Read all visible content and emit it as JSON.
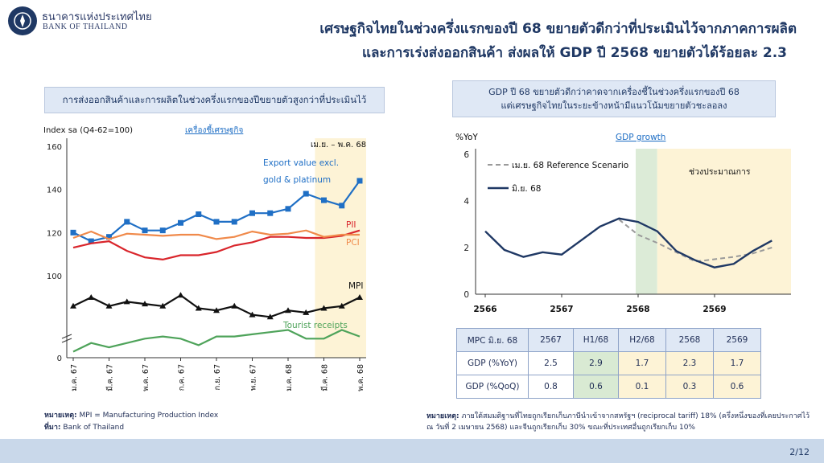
{
  "header": {
    "bank_name_th": "ธนาคารแห่งประเทศไทย",
    "bank_name_en": "BANK OF THAILAND",
    "title_line1": "เศรษฐกิจไทยในช่วงครึ่งแรกของปี 68 ขยายตัวดีกว่าที่ประเมินไว้จากภาคการผลิต",
    "title_line2": "และการเร่งส่งออกสินค้า ส่งผลให้ GDP ปี 2568 ขยายตัวได้ร้อยละ 2.3"
  },
  "left_panel": {
    "box_title": "การส่งออกสินค้าและการผลิตในช่วงครึ่งแรกของปีขยายตัวสูงกว่าที่ประเมินไว้",
    "note_label": "หมายเหตุ:",
    "note_text": "MPI = Manufacturing Production Index",
    "source_label": "ที่มา:",
    "source_text": "Bank of Thailand"
  },
  "right_panel": {
    "box_line1": "GDP ปี 68 ขยายตัวดีกว่าคาดจากเครื่องชี้ในช่วงครึ่งแรกของปี 68",
    "box_line2": "แต่เศรษฐกิจไทยในระยะข้างหน้ามีแนวโน้มขยายตัวชะลอลง",
    "note_label": "หมายเหตุ:",
    "note_line1": "ภายใต้สมมติฐานที่ไทยถูกเรียกเก็บภาษีนำเข้าจากสหรัฐฯ (reciprocal tariff) 18% (ครึ่งหนึ่งของที่เคยประกาศไว้",
    "note_line2": "ณ วันที่ 2 เมษายน 2568) และจีนถูกเรียกเก็บ 30% ขณะที่ประเทศอื่นถูกเรียกเก็บ 10%",
    "table": {
      "header": [
        "MPC มิ.ย. 68",
        "2567",
        "H1/68",
        "H2/68",
        "2568",
        "2569"
      ],
      "rows": [
        [
          "GDP (%YoY)",
          "2.5",
          "2.9",
          "1.7",
          "2.3",
          "1.7"
        ],
        [
          "GDP (%QoQ)",
          "0.8",
          "0.6",
          "0.1",
          "0.3",
          "0.6"
        ]
      ]
    }
  },
  "page_number": "2/12",
  "chart_data": [
    {
      "type": "line",
      "ylabel": "Index sa (Q4-62=100)",
      "link_label": "เครื่องชี้เศรษฐกิจ",
      "period_label": "เม.ย. – พ.ค. 68",
      "ylim": [
        0,
        160
      ],
      "y_ticks": [
        0,
        100,
        120,
        140,
        160
      ],
      "axis_break": true,
      "x_tick_labels": [
        "ม.ค. 67",
        "มี.ค. 67",
        "พ.ค. 67",
        "ก.ค. 67",
        "ก.ย. 67",
        "พ.ย. 67",
        "ม.ค. 68",
        "มี.ค. 68",
        "พ.ค. 68"
      ],
      "x_count": 17,
      "highlight_from_index": 14,
      "series": [
        {
          "name": "Export value excl. gold & platinum",
          "label_lines": [
            "Export value excl.",
            "gold & platinum"
          ],
          "color": "#1f6fc5",
          "marker": "square",
          "values": [
            120,
            116,
            118,
            125,
            121,
            121,
            124.5,
            128.5,
            125,
            125,
            129,
            129,
            131,
            138,
            135,
            132.5,
            144
          ]
        },
        {
          "name": "PII",
          "label_lines": [
            "PII"
          ],
          "color": "#d9252b",
          "marker": "none",
          "values": [
            113,
            115,
            116,
            111.5,
            108.5,
            107.5,
            109.5,
            109.5,
            111,
            114,
            115.5,
            118,
            118,
            117.5,
            117.5,
            118.5,
            121
          ]
        },
        {
          "name": "PCI",
          "label_lines": [
            "PCI"
          ],
          "color": "#f08a4b",
          "marker": "none",
          "values": [
            117.5,
            120.5,
            117,
            119.5,
            119,
            118.5,
            119,
            119,
            117,
            118,
            120.5,
            119,
            119.5,
            121,
            118,
            119,
            119
          ]
        },
        {
          "name": "MPI",
          "label_lines": [
            "MPI"
          ],
          "color": "#111111",
          "marker": "triangle",
          "values": [
            93,
            95,
            93,
            94,
            93.5,
            93,
            95.5,
            92.5,
            92,
            93,
            91,
            90.5,
            92,
            91.5,
            92.5,
            93,
            95
          ]
        },
        {
          "name": "Tourist receipts",
          "label_lines": [
            "Tourist receipts"
          ],
          "color": "#4ea35a",
          "marker": "none",
          "values": [
            82.5,
            84.5,
            83.5,
            84.5,
            85.5,
            86,
            85.5,
            84,
            86,
            86,
            86.5,
            87,
            87.5,
            85.5,
            85.5,
            87.5,
            86
          ]
        }
      ]
    },
    {
      "type": "line",
      "ylabel": "%YoY",
      "link_label": "GDP growth",
      "ylim": [
        0,
        6
      ],
      "y_ticks": [
        0,
        2,
        4,
        6
      ],
      "x_tick_labels": [
        "2566",
        "2567",
        "2568",
        "2569"
      ],
      "x_tick_quarter_index": [
        0,
        4,
        8,
        12
      ],
      "shaded_actual_label": "",
      "forecast_label": "ช่วงประมาณการ",
      "series": [
        {
          "name": "เม.ย. 68 Reference Scenario",
          "color": "#9a9a9a",
          "style": "dashed",
          "x": [
            7,
            8,
            9,
            10,
            11,
            12,
            13,
            14,
            15
          ],
          "values": [
            3.2,
            2.55,
            2.2,
            1.8,
            1.4,
            1.5,
            1.6,
            1.75,
            2.0
          ]
        },
        {
          "name": "มิ.ย. 68",
          "color": "#1f3864",
          "style": "solid",
          "x": [
            0,
            1,
            2,
            3,
            4,
            5,
            6,
            7,
            8,
            9,
            10,
            11,
            12,
            13,
            14,
            15
          ],
          "values": [
            2.7,
            1.9,
            1.6,
            1.8,
            1.7,
            2.3,
            2.9,
            3.25,
            3.1,
            2.7,
            1.85,
            1.45,
            1.15,
            1.3,
            1.85,
            2.3
          ]
        }
      ],
      "actual_shade_quarters": [
        8,
        9
      ],
      "forecast_shade_quarters": [
        9,
        16
      ]
    }
  ]
}
